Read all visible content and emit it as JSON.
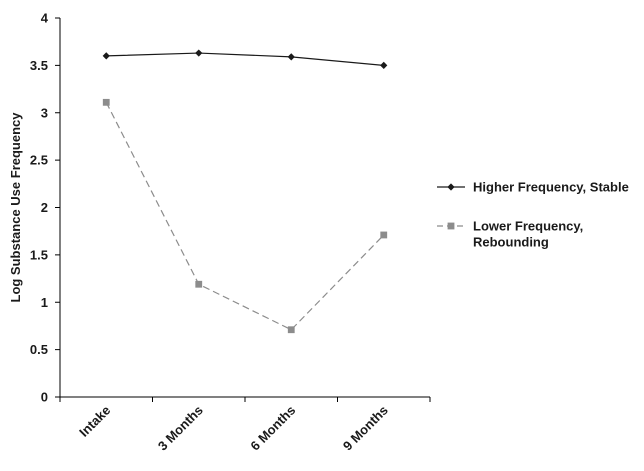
{
  "chart_data": {
    "type": "line",
    "categories": [
      "Intake",
      "3 Months",
      "6 Months",
      "9 Months"
    ],
    "series": [
      {
        "name": "Higher Frequency, Stable",
        "values": [
          3.6,
          3.63,
          3.59,
          3.5
        ],
        "color": "#1a1a1a",
        "line_style": "solid",
        "marker": "diamond"
      },
      {
        "name": "Lower Frequency, Rebounding",
        "legend_lines": [
          "Lower Frequency,",
          "Rebounding"
        ],
        "values": [
          3.11,
          1.19,
          0.71,
          1.71
        ],
        "color": "#8c8c8c",
        "line_style": "dashed",
        "marker": "square"
      }
    ],
    "title": "",
    "xlabel": "",
    "ylabel": "Log Substance Use Frequency",
    "ylim": [
      0,
      4
    ],
    "yticks": [
      "0",
      "0.5",
      "1",
      "1.5",
      "2",
      "2.5",
      "3",
      "3.5",
      "4"
    ],
    "grid": false,
    "legend_position": "right"
  }
}
